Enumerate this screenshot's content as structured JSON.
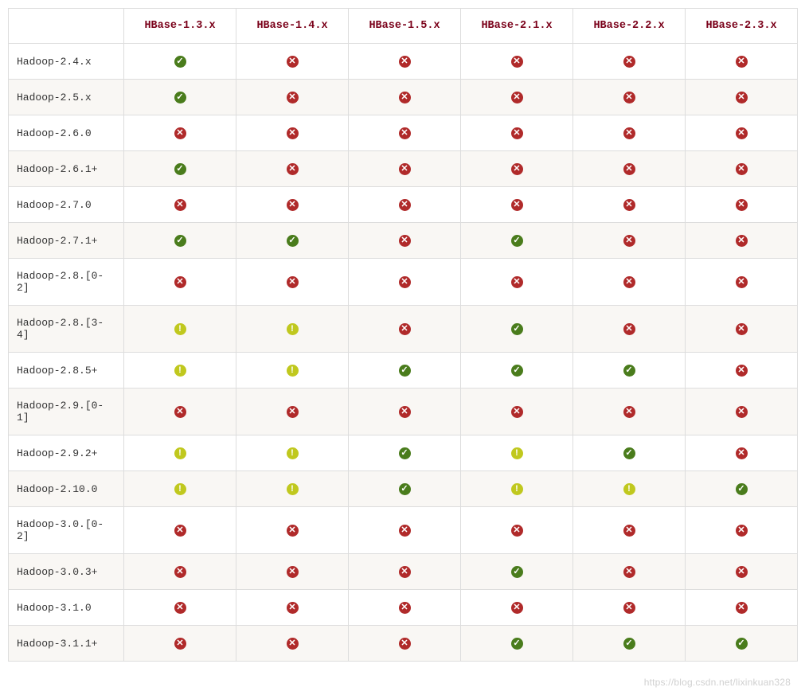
{
  "icons": {
    "yes": {
      "bg": "#4a7c1c",
      "glyph": "✓"
    },
    "no": {
      "bg": "#b02a2a",
      "glyph": "✕"
    },
    "warn": {
      "bg": "#c0c81e",
      "glyph": "!"
    }
  },
  "table": {
    "columns": [
      "",
      "HBase-1.3.x",
      "HBase-1.4.x",
      "HBase-1.5.x",
      "HBase-2.1.x",
      "HBase-2.2.x",
      "HBase-2.3.x"
    ],
    "rows": [
      {
        "label": "Hadoop-2.4.x",
        "cells": [
          "yes",
          "no",
          "no",
          "no",
          "no",
          "no"
        ]
      },
      {
        "label": "Hadoop-2.5.x",
        "cells": [
          "yes",
          "no",
          "no",
          "no",
          "no",
          "no"
        ]
      },
      {
        "label": "Hadoop-2.6.0",
        "cells": [
          "no",
          "no",
          "no",
          "no",
          "no",
          "no"
        ]
      },
      {
        "label": "Hadoop-2.6.1+",
        "cells": [
          "yes",
          "no",
          "no",
          "no",
          "no",
          "no"
        ]
      },
      {
        "label": "Hadoop-2.7.0",
        "cells": [
          "no",
          "no",
          "no",
          "no",
          "no",
          "no"
        ]
      },
      {
        "label": "Hadoop-2.7.1+",
        "cells": [
          "yes",
          "yes",
          "no",
          "yes",
          "no",
          "no"
        ]
      },
      {
        "label": "Hadoop-2.8.[0-2]",
        "cells": [
          "no",
          "no",
          "no",
          "no",
          "no",
          "no"
        ]
      },
      {
        "label": "Hadoop-2.8.[3-4]",
        "cells": [
          "warn",
          "warn",
          "no",
          "yes",
          "no",
          "no"
        ]
      },
      {
        "label": "Hadoop-2.8.5+",
        "cells": [
          "warn",
          "warn",
          "yes",
          "yes",
          "yes",
          "no"
        ]
      },
      {
        "label": "Hadoop-2.9.[0-1]",
        "cells": [
          "no",
          "no",
          "no",
          "no",
          "no",
          "no"
        ]
      },
      {
        "label": "Hadoop-2.9.2+",
        "cells": [
          "warn",
          "warn",
          "yes",
          "warn",
          "yes",
          "no"
        ]
      },
      {
        "label": "Hadoop-2.10.0",
        "cells": [
          "warn",
          "warn",
          "yes",
          "warn",
          "warn",
          "yes"
        ]
      },
      {
        "label": "Hadoop-3.0.[0-2]",
        "cells": [
          "no",
          "no",
          "no",
          "no",
          "no",
          "no"
        ]
      },
      {
        "label": "Hadoop-3.0.3+",
        "cells": [
          "no",
          "no",
          "no",
          "yes",
          "no",
          "no"
        ]
      },
      {
        "label": "Hadoop-3.1.0",
        "cells": [
          "no",
          "no",
          "no",
          "no",
          "no",
          "no"
        ]
      },
      {
        "label": "Hadoop-3.1.1+",
        "cells": [
          "no",
          "no",
          "no",
          "yes",
          "yes",
          "yes"
        ]
      }
    ]
  },
  "watermark": "https://blog.csdn.net/lixinkuan328"
}
